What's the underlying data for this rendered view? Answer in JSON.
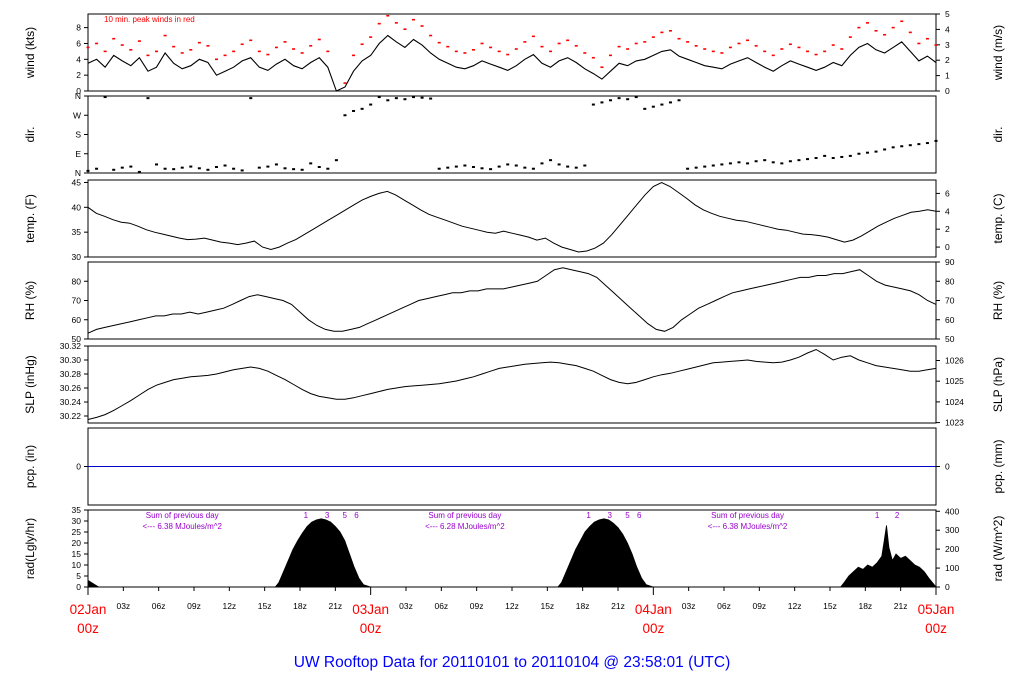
{
  "page_title": "UW Rooftop Data for 20110101  to  20110104 @ 23:58:01  (UTC)",
  "colors": {
    "frame": "#000000",
    "trace": "#000000",
    "peak": "#ff0000",
    "precip": "#0000cc",
    "radiation_note": "#9900cc",
    "date_label": "#ff0000",
    "title": "#0000ff"
  },
  "chart_data": [
    {
      "id": "wind",
      "type": "line",
      "ylabel": "wind (kts)",
      "ylabel_right": "wind (m/s)",
      "annotation": "10 min. peak winds in red",
      "ylim": [
        0,
        9.72
      ],
      "yticks": [
        "0",
        "2",
        "4",
        "6",
        "8"
      ],
      "yticks_right": [
        "0",
        "1",
        "2",
        "3",
        "4",
        "5"
      ],
      "ylim_right": [
        0,
        5
      ],
      "series": [
        {
          "values": [
            3.5,
            4.0,
            3.0,
            4.5,
            3.8,
            3.2,
            4.2,
            2.5,
            3.0,
            4.8,
            3.5,
            2.8,
            3.2,
            4.0,
            3.6,
            2.0,
            2.5,
            3.0,
            3.8,
            4.2,
            3.0,
            2.6,
            3.4,
            4.0,
            3.2,
            2.8,
            3.6,
            4.2,
            3.0,
            0.0,
            0.5,
            2.5,
            3.8,
            4.5,
            6.0,
            7.0,
            6.2,
            5.5,
            6.5,
            5.8,
            4.8,
            4.0,
            3.5,
            3.0,
            2.8,
            3.2,
            3.8,
            3.4,
            3.0,
            2.6,
            3.2,
            4.0,
            4.6,
            3.5,
            3.0,
            3.8,
            4.2,
            3.6,
            2.8,
            2.2,
            1.5,
            2.5,
            3.5,
            3.2,
            3.8,
            4.0,
            4.5,
            5.0,
            5.2,
            4.4,
            4.0,
            3.6,
            3.2,
            3.0,
            2.8,
            3.4,
            3.8,
            4.2,
            3.6,
            3.0,
            2.5,
            3.2,
            3.8,
            3.4,
            3.0,
            2.6,
            3.0,
            3.6,
            3.2,
            4.5,
            5.5,
            6.0,
            5.2,
            4.8,
            5.5,
            6.2,
            5.0,
            3.8,
            4.4,
            3.6
          ]
        },
        {
          "values": [
            5.5,
            6.0,
            5.0,
            6.6,
            5.8,
            5.2,
            6.3,
            4.5,
            5.0,
            7.0,
            5.6,
            4.8,
            5.2,
            6.1,
            5.7,
            4.0,
            4.5,
            5.0,
            5.9,
            6.4,
            5.0,
            4.6,
            5.5,
            6.2,
            5.3,
            4.8,
            5.7,
            6.5,
            5.0,
            0.0,
            1.0,
            4.5,
            5.9,
            6.8,
            8.5,
            9.5,
            8.6,
            7.8,
            9.0,
            8.2,
            7.0,
            6.1,
            5.6,
            5.0,
            4.8,
            5.2,
            6.0,
            5.5,
            5.0,
            4.6,
            5.3,
            6.2,
            6.9,
            5.6,
            5.0,
            6.0,
            6.4,
            5.7,
            4.8,
            4.2,
            3.0,
            4.5,
            5.6,
            5.3,
            6.0,
            6.2,
            6.8,
            7.4,
            7.6,
            6.6,
            6.2,
            5.7,
            5.3,
            5.0,
            4.8,
            5.5,
            6.0,
            6.4,
            5.7,
            5.0,
            4.5,
            5.3,
            5.9,
            5.5,
            5.0,
            4.6,
            5.0,
            5.8,
            5.3,
            6.8,
            8.0,
            8.6,
            7.6,
            7.1,
            8.0,
            8.8,
            7.4,
            6.0,
            6.6,
            5.8
          ]
        }
      ]
    },
    {
      "id": "direction",
      "type": "scatter",
      "ylabel": "dir.",
      "ylabel_right": "dir.",
      "yticks": [
        "N",
        "E",
        "S",
        "W",
        "N"
      ],
      "ylim": [
        0,
        360
      ],
      "values": [
        10,
        20,
        355,
        15,
        25,
        30,
        5,
        350,
        40,
        20,
        18,
        25,
        30,
        22,
        15,
        28,
        35,
        20,
        12,
        350,
        25,
        30,
        40,
        22,
        18,
        15,
        45,
        28,
        20,
        60,
        270,
        290,
        300,
        320,
        355,
        340,
        350,
        345,
        355,
        352,
        348,
        20,
        25,
        30,
        35,
        28,
        22,
        18,
        30,
        40,
        35,
        25,
        20,
        45,
        60,
        40,
        30,
        25,
        35,
        320,
        330,
        340,
        350,
        345,
        355,
        300,
        310,
        320,
        330,
        340,
        20,
        25,
        30,
        35,
        40,
        45,
        50,
        45,
        55,
        60,
        50,
        45,
        55,
        60,
        65,
        70,
        80,
        70,
        75,
        80,
        90,
        95,
        100,
        110,
        120,
        125,
        130,
        135,
        140,
        150
      ]
    },
    {
      "id": "temperature",
      "type": "line",
      "ylabel": "temp. (F)",
      "ylabel_right": "temp. (C)",
      "ylim": [
        30,
        45.5
      ],
      "yticks": [
        "30",
        "35",
        "40",
        "45"
      ],
      "yticks_right": [
        "0",
        "2",
        "4",
        "6"
      ],
      "ylim_right": [
        -1.11,
        7.5
      ],
      "values": [
        40.0,
        38.8,
        38.2,
        37.5,
        37.0,
        36.8,
        36.2,
        35.5,
        35.0,
        34.6,
        34.2,
        33.8,
        33.5,
        33.6,
        33.8,
        33.4,
        33.0,
        32.8,
        32.5,
        32.8,
        33.2,
        32.0,
        31.5,
        32.0,
        32.8,
        33.5,
        34.5,
        35.5,
        36.5,
        37.5,
        38.5,
        39.5,
        40.5,
        41.5,
        42.2,
        42.8,
        43.2,
        42.5,
        41.5,
        40.5,
        39.5,
        38.6,
        38.0,
        37.4,
        36.8,
        36.2,
        35.8,
        35.4,
        35.0,
        34.8,
        35.2,
        34.8,
        34.4,
        34.0,
        33.4,
        33.8,
        32.8,
        32.0,
        31.5,
        31.0,
        31.2,
        31.8,
        32.8,
        34.5,
        36.5,
        38.5,
        40.5,
        42.5,
        44.2,
        45.0,
        44.2,
        43.0,
        41.8,
        40.5,
        39.5,
        38.8,
        38.2,
        37.8,
        37.4,
        37.2,
        36.8,
        36.4,
        36.0,
        35.6,
        35.4,
        35.0,
        34.6,
        34.5,
        34.3,
        34.0,
        33.5,
        33.0,
        33.4,
        34.2,
        35.2,
        36.2,
        37.0,
        37.8,
        38.4,
        39.0,
        39.2,
        39.5,
        39.2
      ]
    },
    {
      "id": "humidity",
      "type": "line",
      "ylabel": "RH (%)",
      "ylabel_right": "RH (%)",
      "ylim": [
        50,
        90
      ],
      "yticks": [
        "50",
        "60",
        "70",
        "80"
      ],
      "yticks_right": [
        "50",
        "60",
        "70",
        "80",
        "90"
      ],
      "values": [
        53,
        55,
        56,
        57,
        58,
        59,
        60,
        61,
        62,
        62,
        63,
        63,
        64,
        63,
        64,
        65,
        66,
        68,
        70,
        72,
        73,
        72,
        71,
        70,
        68,
        64,
        60,
        57,
        55,
        54,
        54,
        55,
        56,
        58,
        60,
        62,
        64,
        66,
        68,
        70,
        71,
        72,
        73,
        74,
        74,
        75,
        75,
        76,
        76,
        76,
        77,
        78,
        79,
        80,
        83,
        86,
        87,
        86,
        85,
        84,
        82,
        78,
        74,
        70,
        66,
        62,
        58,
        55,
        54,
        56,
        60,
        63,
        66,
        68,
        70,
        72,
        74,
        75,
        76,
        77,
        78,
        79,
        80,
        81,
        82,
        82,
        83,
        83,
        84,
        84,
        85,
        86,
        83,
        80,
        78,
        77,
        76,
        75,
        73,
        70,
        68
      ]
    },
    {
      "id": "pressure",
      "type": "line",
      "ylabel": "SLP (inHg)",
      "ylabel_right": "SLP (hPa)",
      "ylim": [
        30.21,
        30.32
      ],
      "yticks": [
        "30.22",
        "30.24",
        "30.26",
        "30.28",
        "30.30",
        "30.32"
      ],
      "yticks_right": [
        "1023",
        "1024",
        "1025",
        "1026"
      ],
      "ylim_right": [
        1022.98,
        1026.7
      ],
      "values": [
        30.215,
        30.218,
        30.222,
        30.228,
        30.235,
        30.242,
        30.25,
        30.258,
        30.264,
        30.268,
        30.272,
        30.274,
        30.276,
        30.277,
        30.278,
        30.28,
        30.283,
        30.286,
        30.288,
        30.29,
        30.288,
        30.284,
        30.278,
        30.272,
        30.265,
        30.258,
        30.252,
        30.248,
        30.246,
        30.244,
        30.244,
        30.246,
        30.249,
        30.252,
        30.255,
        30.258,
        30.26,
        30.262,
        30.263,
        30.264,
        30.265,
        30.266,
        30.268,
        30.27,
        30.273,
        30.276,
        30.28,
        30.284,
        30.288,
        30.29,
        30.292,
        30.294,
        30.295,
        30.296,
        30.297,
        30.296,
        30.294,
        30.292,
        30.288,
        30.284,
        30.278,
        30.272,
        30.268,
        30.266,
        30.268,
        30.272,
        30.276,
        30.279,
        30.281,
        30.284,
        30.287,
        30.29,
        30.293,
        30.296,
        30.297,
        30.298,
        30.299,
        30.3,
        30.298,
        30.297,
        30.296,
        30.297,
        30.3,
        30.304,
        30.31,
        30.315,
        30.308,
        30.3,
        30.304,
        30.306,
        30.3,
        30.296,
        30.292,
        30.29,
        30.288,
        30.286,
        30.284,
        30.284,
        30.286,
        30.288
      ]
    },
    {
      "id": "precipitation",
      "type": "line",
      "ylabel": "pcp. (in)",
      "ylabel_right": "pcp. (mm)",
      "ylim": [
        -0.5,
        0.5
      ],
      "yticks": [
        "0"
      ],
      "yticks_right": [
        "0"
      ],
      "values": [
        0,
        0
      ]
    },
    {
      "id": "radiation",
      "type": "area",
      "ylabel": "rad(Lgly/hr)",
      "ylabel_right": "rad (W/m^2)",
      "ylim": [
        0,
        35
      ],
      "yticks": [
        "0",
        "5",
        "10",
        "15",
        "20",
        "25",
        "30",
        "35"
      ],
      "yticks_right": [
        "0",
        "100",
        "200",
        "300",
        "400"
      ],
      "ylim_right": [
        0,
        406.7
      ],
      "daily_notes": [
        {
          "line1": "Sum of previous day",
          "line2": "<--- 6.38 MJoules/m^2",
          "x_hour": 8
        },
        {
          "line1": "Sum of previous day",
          "line2": "<--- 6.28 MJoules/m^2",
          "x_hour": 32
        },
        {
          "line1": "Sum of previous day",
          "line2": "<--- 6.38 MJoules/m^2",
          "x_hour": 56
        }
      ],
      "index_marks": [
        {
          "label": "1",
          "x_hour": 18.5
        },
        {
          "label": "3",
          "x_hour": 20.3
        },
        {
          "label": "5",
          "x_hour": 21.8
        },
        {
          "label": "6",
          "x_hour": 22.8
        },
        {
          "label": "1",
          "x_hour": 42.5
        },
        {
          "label": "3",
          "x_hour": 44.3
        },
        {
          "label": "5",
          "x_hour": 45.8
        },
        {
          "label": "6",
          "x_hour": 46.8
        },
        {
          "label": "1",
          "x_hour": 67.0
        },
        {
          "label": "2",
          "x_hour": 68.7
        }
      ],
      "x": [
        0,
        0.3,
        0.6,
        0.9,
        15.9,
        16.2,
        16.6,
        17,
        17.4,
        17.8,
        18.2,
        18.6,
        19,
        19.4,
        19.8,
        20.2,
        20.6,
        21,
        21.4,
        21.8,
        22.2,
        22.6,
        23,
        23.4,
        24,
        39.9,
        40.2,
        40.6,
        41,
        41.4,
        41.8,
        42.2,
        42.6,
        43,
        43.4,
        43.8,
        44.2,
        44.6,
        45,
        45.4,
        45.8,
        46.2,
        46.6,
        47,
        47.4,
        48,
        63.9,
        64.2,
        64.6,
        65,
        65.4,
        65.8,
        66.2,
        66.6,
        67,
        67.4,
        67.6,
        67.8,
        68,
        68.3,
        68.6,
        69,
        69.4,
        69.8,
        70.2,
        70.6,
        71,
        71.4,
        72
      ],
      "values": [
        3,
        2,
        1,
        0,
        0,
        2,
        7,
        12,
        17,
        21,
        24.5,
        27.5,
        29.5,
        30.5,
        31,
        30.5,
        29.5,
        27.5,
        25,
        21,
        15,
        9,
        4,
        1,
        0,
        0,
        2,
        7,
        12,
        17,
        21,
        25,
        27.5,
        29.5,
        30.5,
        31,
        30.5,
        29,
        27,
        24,
        20,
        15,
        9,
        4,
        1,
        0,
        0,
        2,
        5,
        7,
        9,
        8,
        10,
        9,
        11,
        14,
        21,
        28,
        18,
        12,
        15,
        13,
        14,
        12,
        10,
        9,
        7,
        4,
        0
      ]
    }
  ],
  "x_axis": {
    "hours_span": 72,
    "hour_ticks": [
      "03z",
      "06z",
      "09z",
      "12z",
      "15z",
      "18z",
      "21z",
      "03z",
      "06z",
      "09z",
      "12z",
      "15z",
      "18z",
      "21z",
      "03z",
      "06z",
      "09z",
      "12z",
      "15z",
      "18z",
      "21z"
    ],
    "hour_tick_positions": [
      3,
      6,
      9,
      12,
      15,
      18,
      21,
      27,
      30,
      33,
      36,
      39,
      42,
      45,
      51,
      54,
      57,
      60,
      63,
      66,
      69
    ],
    "date_labels": [
      {
        "date": "02Jan",
        "time": "00z",
        "x_hour": 0
      },
      {
        "date": "03Jan",
        "time": "00z",
        "x_hour": 24
      },
      {
        "date": "04Jan",
        "time": "00z",
        "x_hour": 48
      },
      {
        "date": "05Jan",
        "time": "00z",
        "x_hour": 72
      }
    ]
  }
}
